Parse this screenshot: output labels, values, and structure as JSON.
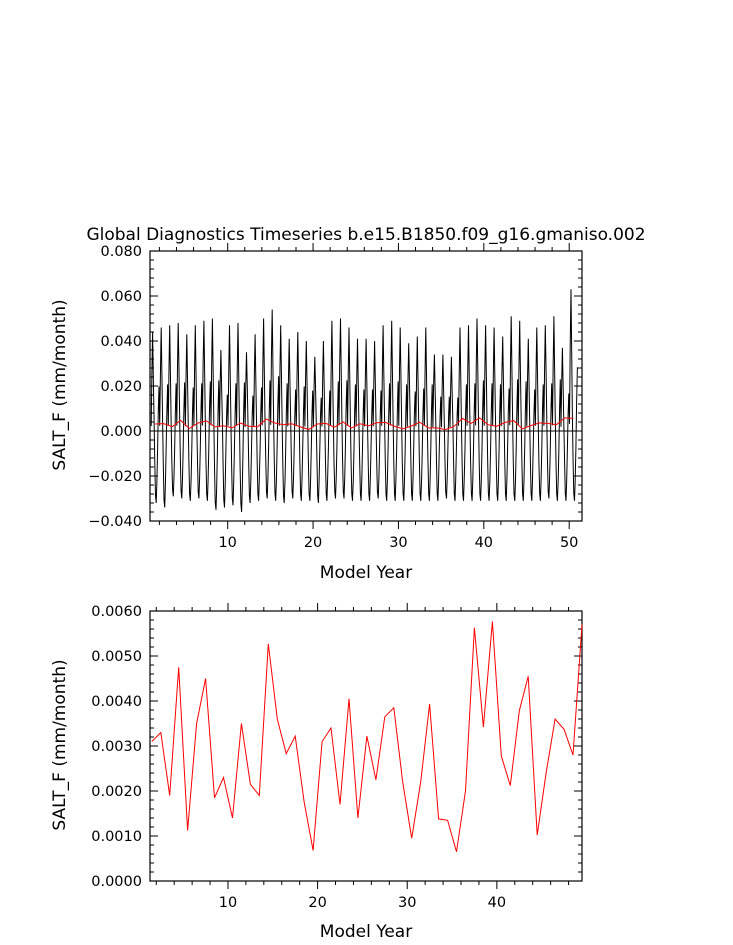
{
  "colors": {
    "background": "#ffffff",
    "axes": "#000000",
    "monthly_series": "#000000",
    "annual_series": "#ff0000"
  },
  "chart_data": [
    {
      "type": "line",
      "title": "Global Diagnostics Timeseries b.e15.B1850.f09_g16.gmaniso.002",
      "xlabel": "Model Year",
      "ylabel": "SALT_F (mm/month)",
      "xlim": [
        0.9,
        51.5
      ],
      "ylim": [
        -0.04,
        0.08
      ],
      "xticks": [
        10,
        20,
        30,
        40,
        50
      ],
      "yticks": [
        -0.04,
        -0.02,
        0.0,
        0.02,
        0.04,
        0.06,
        0.08
      ],
      "ytick_labels": [
        "−0.040",
        "−0.020",
        "0.000",
        "0.020",
        "0.040",
        "0.060",
        "0.080"
      ],
      "xtick_labels": [
        "10",
        "20",
        "30",
        "40",
        "50"
      ],
      "zero_line": true,
      "series": [
        {
          "color": "#000000",
          "sampling": "monthly",
          "x_start": 1.0417,
          "x_step": 0.08333,
          "annual_cycle_peak": [
            0.044,
            0.046,
            0.047,
            0.048,
            0.043,
            0.047,
            0.049,
            0.05,
            0.036,
            0.047,
            0.048,
            0.035,
            0.043,
            0.05,
            0.054,
            0.047,
            0.041,
            0.044,
            0.04,
            0.033,
            0.04,
            0.049,
            0.05,
            0.046,
            0.041,
            0.041,
            0.04,
            0.047,
            0.049,
            0.046,
            0.039,
            0.042,
            0.046,
            0.034,
            0.034,
            0.033,
            0.046,
            0.047,
            0.05,
            0.047,
            0.046,
            0.042,
            0.051,
            0.049,
            0.041,
            0.046,
            0.047,
            0.051,
            0.037,
            0.063
          ],
          "annual_cycle_trough": [
            -0.032,
            -0.034,
            -0.029,
            -0.03,
            -0.031,
            -0.03,
            -0.031,
            -0.035,
            -0.034,
            -0.033,
            -0.036,
            -0.032,
            -0.031,
            -0.03,
            -0.031,
            -0.032,
            -0.03,
            -0.031,
            -0.031,
            -0.032,
            -0.031,
            -0.03,
            -0.03,
            -0.031,
            -0.031,
            -0.031,
            -0.03,
            -0.031,
            -0.031,
            -0.031,
            -0.031,
            -0.031,
            -0.031,
            -0.031,
            -0.03,
            -0.031,
            -0.031,
            -0.031,
            -0.031,
            -0.031,
            -0.031,
            -0.031,
            -0.031,
            -0.031,
            -0.031,
            -0.031,
            -0.03,
            -0.031,
            -0.031,
            -0.031
          ]
        },
        {
          "color": "#ff0000",
          "sampling": "annual",
          "x": [
            1.5,
            2.5,
            3.5,
            4.5,
            5.5,
            6.5,
            7.5,
            8.5,
            9.5,
            10.5,
            11.5,
            12.5,
            13.5,
            14.5,
            15.5,
            16.5,
            17.5,
            18.5,
            19.5,
            20.5,
            21.5,
            22.5,
            23.5,
            24.5,
            25.5,
            26.5,
            27.5,
            28.5,
            29.5,
            30.5,
            31.5,
            32.5,
            33.5,
            34.5,
            35.5,
            36.5,
            37.5,
            38.5,
            39.5,
            40.5,
            41.5,
            42.5,
            43.5,
            44.5,
            45.5,
            46.5,
            47.5,
            48.5,
            49.5,
            50.5
          ],
          "values": [
            0.0031,
            0.0033,
            0.0019,
            0.0047,
            0.0011,
            0.0035,
            0.0045,
            0.0018,
            0.0023,
            0.0014,
            0.0035,
            0.0021,
            0.0019,
            0.0053,
            0.0036,
            0.0028,
            0.0032,
            0.0018,
            0.0007,
            0.0031,
            0.0034,
            0.0017,
            0.0041,
            0.0014,
            0.0032,
            0.0023,
            0.0037,
            0.0038,
            0.0022,
            0.001,
            0.0022,
            0.0039,
            0.0014,
            0.0014,
            0.0006,
            0.002,
            0.0056,
            0.0034,
            0.0058,
            0.0028,
            0.0021,
            0.0038,
            0.0046,
            0.001,
            0.0024,
            0.0036,
            0.0034,
            0.0028,
            0.0058,
            0.0056
          ]
        }
      ]
    },
    {
      "type": "line",
      "xlabel": "Model Year",
      "ylabel": "SALT_F (mm/month)",
      "xlim": [
        1.3,
        49.5
      ],
      "ylim": [
        0.0,
        0.006
      ],
      "xticks": [
        10,
        20,
        30,
        40
      ],
      "yticks": [
        0.0,
        0.001,
        0.002,
        0.003,
        0.004,
        0.005,
        0.006
      ],
      "ytick_labels": [
        "0.0000",
        "0.0010",
        "0.0020",
        "0.0030",
        "0.0040",
        "0.0050",
        "0.0060"
      ],
      "xtick_labels": [
        "10",
        "20",
        "30",
        "40"
      ],
      "series": [
        {
          "color": "#ff0000",
          "x": [
            1.5,
            2.5,
            3.5,
            4.5,
            5.5,
            6.5,
            7.5,
            8.5,
            9.5,
            10.5,
            11.5,
            12.5,
            13.5,
            14.5,
            15.5,
            16.5,
            17.5,
            18.5,
            19.5,
            20.5,
            21.5,
            22.5,
            23.5,
            24.5,
            25.5,
            26.5,
            27.5,
            28.5,
            29.5,
            30.5,
            31.5,
            32.5,
            33.5,
            34.5,
            35.5,
            36.5,
            37.5,
            38.5,
            39.5,
            40.5,
            41.5,
            42.5,
            43.5,
            44.5,
            45.5,
            46.5,
            47.5,
            48.5,
            49.5
          ],
          "values": [
            0.0031,
            0.0033,
            0.0019,
            0.00475,
            0.00112,
            0.0035,
            0.0045,
            0.00185,
            0.0023,
            0.0014,
            0.0035,
            0.00215,
            0.0019,
            0.00527,
            0.0036,
            0.00283,
            0.00322,
            0.00175,
            0.00068,
            0.0031,
            0.0034,
            0.0017,
            0.00405,
            0.0014,
            0.00322,
            0.00225,
            0.00365,
            0.00385,
            0.0022,
            0.00095,
            0.0022,
            0.00393,
            0.00138,
            0.00135,
            0.00065,
            0.002,
            0.00563,
            0.00342,
            0.00577,
            0.00278,
            0.00212,
            0.00378,
            0.00455,
            0.00102,
            0.0024,
            0.0036,
            0.00337,
            0.0028,
            0.0057
          ]
        }
      ]
    }
  ]
}
